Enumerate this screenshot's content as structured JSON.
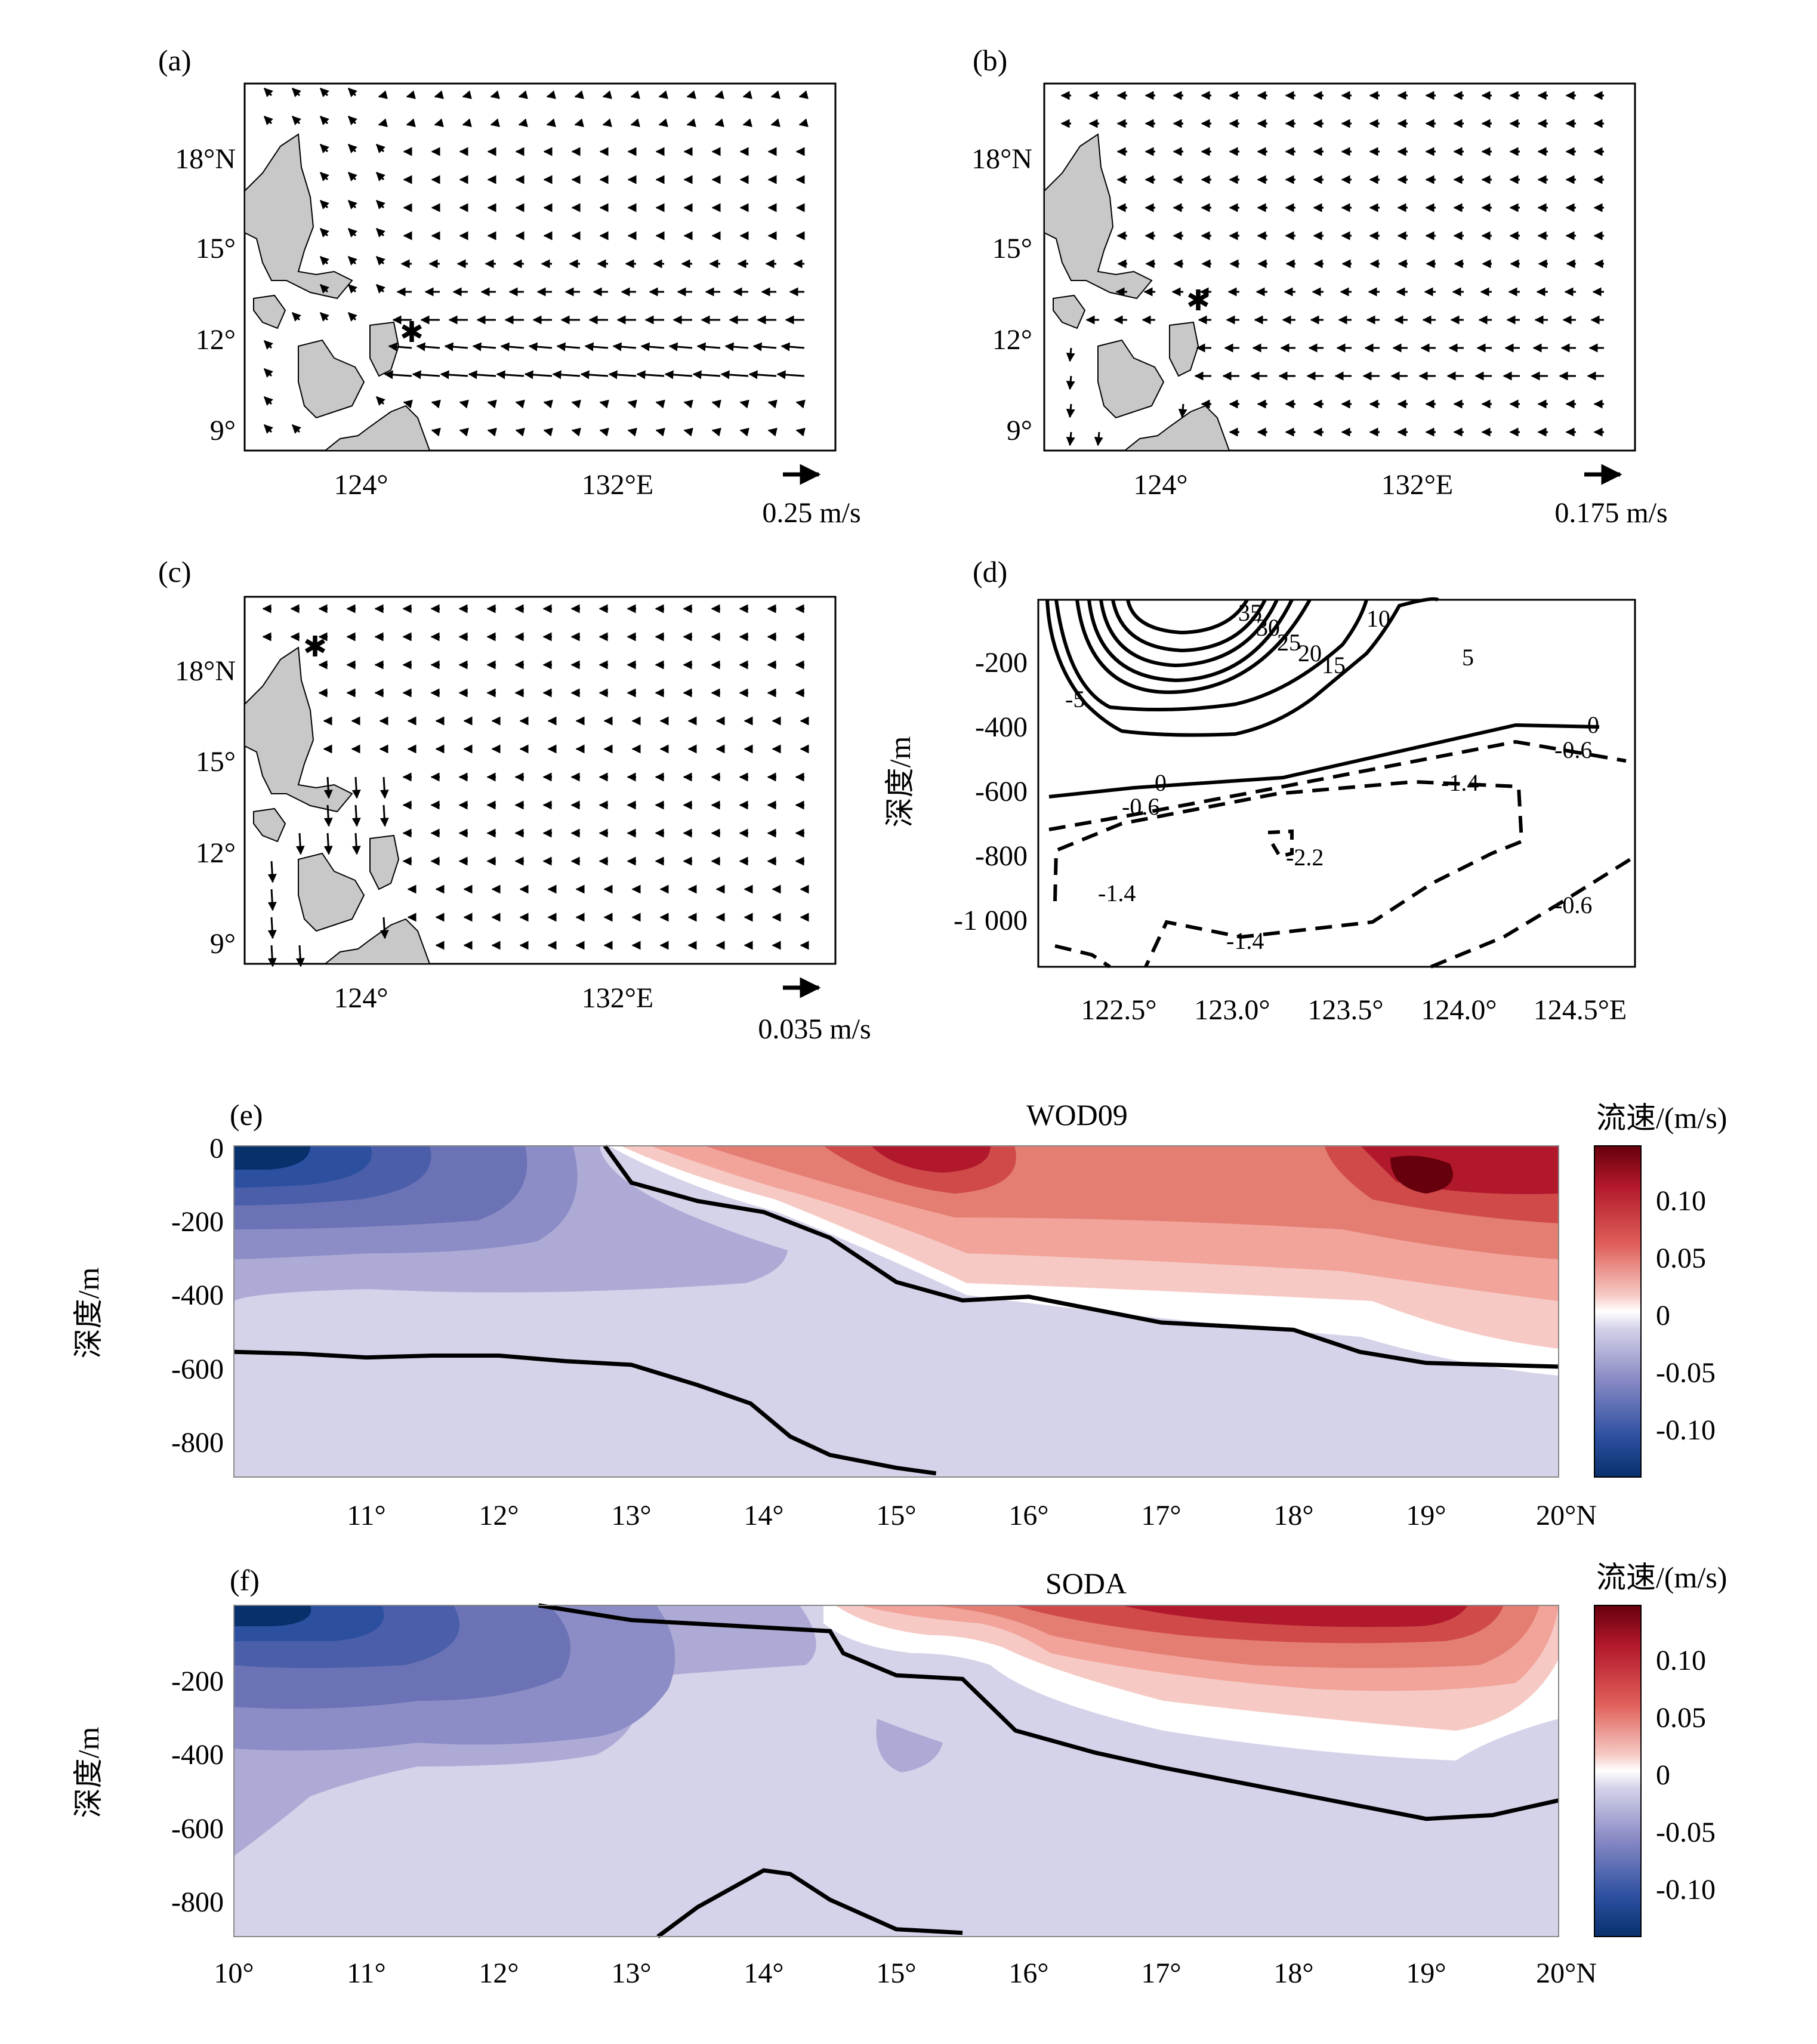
{
  "panels": [
    {
      "id": "a",
      "label": "(a)",
      "lat_ticks": [
        "18°N",
        "15°",
        "12°",
        "9°"
      ],
      "lon_ticks": [
        "124°",
        "132°E"
      ],
      "scale_label": "0.25 m/s",
      "marker": "asterisk"
    },
    {
      "id": "b",
      "label": "(b)",
      "lat_ticks": [
        "18°N",
        "15°",
        "12°",
        "9°"
      ],
      "lon_ticks": [
        "124°",
        "132°E"
      ],
      "scale_label": "0.175 m/s",
      "marker": "asterisk"
    },
    {
      "id": "c",
      "label": "(c)",
      "lat_ticks": [
        "18°N",
        "15°",
        "12°",
        "9°"
      ],
      "lon_ticks": [
        "124°",
        "132°E"
      ],
      "scale_label": "0.035 m/s",
      "marker": "asterisk"
    }
  ],
  "chart_data": [
    {
      "id": "a",
      "type": "quiver",
      "lon_range": [
        120,
        138
      ],
      "lat_range": [
        8,
        20
      ],
      "lat_ticks": [
        18,
        15,
        12,
        9
      ],
      "lon_ticks": [
        124,
        132
      ],
      "reference_vector": "0.25 m/s",
      "marker_position": {
        "lon": 125.2,
        "lat": 12.3
      }
    },
    {
      "id": "b",
      "type": "quiver",
      "lon_range": [
        120,
        138
      ],
      "lat_range": [
        8,
        20
      ],
      "lat_ticks": [
        18,
        15,
        12,
        9
      ],
      "lon_ticks": [
        124,
        132
      ],
      "reference_vector": "0.175 m/s",
      "marker_position": {
        "lon": 124.6,
        "lat": 13.3
      }
    },
    {
      "id": "c",
      "type": "quiver",
      "lon_range": [
        120,
        138
      ],
      "lat_range": [
        8,
        20
      ],
      "lat_ticks": [
        18,
        15,
        12,
        9
      ],
      "lon_ticks": [
        124,
        132
      ],
      "reference_vector": "0.035 m/s",
      "marker_position": {
        "lon": 122.2,
        "lat": 18.9
      }
    },
    {
      "id": "d",
      "type": "contour",
      "label": "(d)",
      "ylabel": "深度/m",
      "xlim": [
        122.2,
        124.8
      ],
      "ylim": [
        -1130,
        0
      ],
      "xtick_labels": [
        "122.5°",
        "123.0°",
        "123.5°",
        "124.0°",
        "124.5°E"
      ],
      "xticks": [
        122.5,
        123.0,
        123.5,
        124.0,
        124.5
      ],
      "ytick_labels": [
        "-200",
        "-400",
        "-600",
        "-800",
        "-1 000"
      ],
      "yticks": [
        -200,
        -400,
        -600,
        -800,
        -1000
      ],
      "contour_labels": [
        "35",
        "30",
        "25",
        "20",
        "15",
        "10",
        "5",
        "-5",
        "0",
        "0",
        "-0.6",
        "-0.6",
        "-1.4",
        "-1.4",
        "-1.4",
        "-2.2",
        "-0.6"
      ],
      "positive_contours_solid": true,
      "negative_contours_dashed": true
    },
    {
      "id": "e",
      "type": "heatmap",
      "label": "(e)",
      "title": "WOD09",
      "ylabel": "深度/m",
      "colorbar_label": "流速/(m/s)",
      "colorbar_ticks": [
        "0.10",
        "0.05",
        "0",
        "-0.05",
        "-0.10"
      ],
      "colorbar_range": [
        -0.14,
        0.14
      ],
      "xlim": [
        10,
        20
      ],
      "ylim": [
        -900,
        0
      ],
      "xtick_labels": [
        "11°",
        "12°",
        "13°",
        "14°",
        "15°",
        "16°",
        "17°",
        "18°",
        "19°",
        "20°N"
      ],
      "xticks": [
        11,
        12,
        13,
        14,
        15,
        16,
        17,
        18,
        19,
        20
      ],
      "ytick_labels": [
        "0",
        "-200",
        "-400",
        "-600",
        "-800"
      ],
      "yticks": [
        0,
        -200,
        -400,
        -600,
        -800
      ],
      "zero_contour_upper": {
        "x": [
          12.8,
          13.0,
          13.5,
          14.0,
          14.5,
          15.0,
          15.5,
          16.0,
          17.0,
          18.0,
          18.5,
          19.0,
          20.0
        ],
        "y": [
          0,
          -100,
          -150,
          -180,
          -250,
          -370,
          -420,
          -410,
          -480,
          -500,
          -560,
          -590,
          -600
        ]
      },
      "zero_contour_lower": {
        "x": [
          10.0,
          10.5,
          11.0,
          11.5,
          12.0,
          12.5,
          13.0,
          13.5,
          13.9,
          14.2,
          14.5,
          15.0,
          15.3
        ],
        "y": [
          -560,
          -565,
          -575,
          -570,
          -570,
          -585,
          -595,
          -650,
          -700,
          -790,
          -840,
          -875,
          -890
        ]
      },
      "positive_region_boundary_x_at_surface": 12.8
    },
    {
      "id": "f",
      "type": "heatmap",
      "label": "(f)",
      "title": "SODA",
      "ylabel": "深度/m",
      "colorbar_label": "流速/(m/s)",
      "colorbar_ticks": [
        "0.10",
        "0.05",
        "0",
        "-0.05",
        "-0.10"
      ],
      "colorbar_range": [
        -0.14,
        0.14
      ],
      "xlim": [
        10,
        20
      ],
      "ylim": [
        -900,
        0
      ],
      "xtick_labels": [
        "10°",
        "11°",
        "12°",
        "13°",
        "14°",
        "15°",
        "16°",
        "17°",
        "18°",
        "19°",
        "20°N"
      ],
      "xticks": [
        10,
        11,
        12,
        13,
        14,
        15,
        16,
        17,
        18,
        19,
        20
      ],
      "ytick_labels": [
        "-200",
        "-400",
        "-600",
        "-800"
      ],
      "yticks": [
        -200,
        -400,
        -600,
        -800
      ],
      "zero_contour_upper": {
        "x": [
          12.3,
          13.0,
          14.0,
          14.5,
          14.6,
          15.0,
          15.5,
          15.9,
          16.5,
          17.0,
          18.0,
          19.0,
          19.5,
          20.0
        ],
        "y": [
          0,
          -40,
          -60,
          -70,
          -130,
          -190,
          -200,
          -340,
          -400,
          -440,
          -510,
          -580,
          -570,
          -530
        ]
      },
      "zero_contour_lower": {
        "x": [
          13.2,
          13.5,
          14.0,
          14.2,
          14.5,
          15.0,
          15.5
        ],
        "y": [
          -900,
          -820,
          -720,
          -730,
          -800,
          -880,
          -890
        ]
      },
      "positive_region_boundary_x_at_surface": 12.3
    }
  ],
  "colors": {
    "land": "#c8c8c8",
    "strong_negative": "#08306b",
    "strong_positive": "#67000d"
  }
}
